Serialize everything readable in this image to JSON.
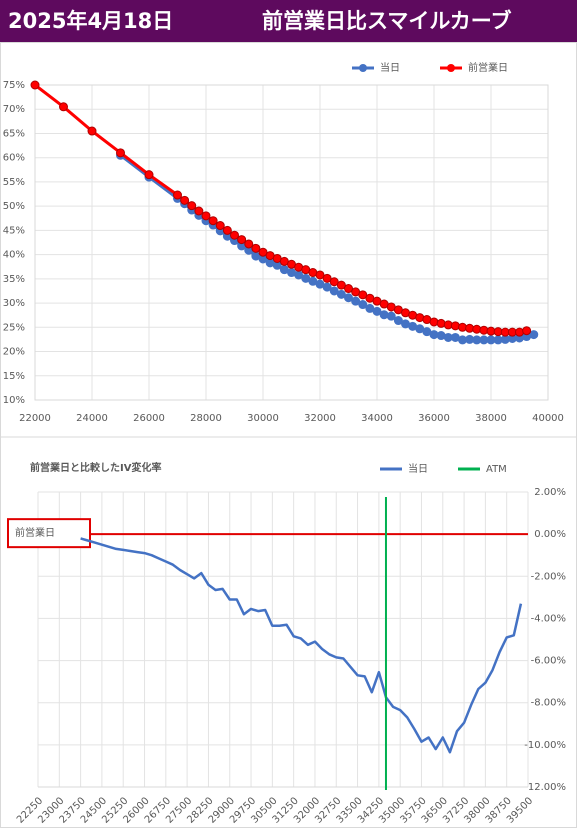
{
  "header": {
    "date": "2025年4月18日",
    "title": "前営業日比スマイルカーブ"
  },
  "chart_data": [
    {
      "type": "line",
      "markers": true,
      "grid": true,
      "legend": "top",
      "yaxis_position": "left",
      "xlim": [
        22000,
        40000
      ],
      "xticks": [
        22000,
        24000,
        26000,
        28000,
        30000,
        32000,
        34000,
        36000,
        38000,
        40000
      ],
      "ylim": [
        10,
        75
      ],
      "yticks": [
        {
          "value": 10,
          "label": "10%"
        },
        {
          "value": 15,
          "label": "15%"
        },
        {
          "value": 20,
          "label": "20%"
        },
        {
          "value": 25,
          "label": "25%"
        },
        {
          "value": 30,
          "label": "30%"
        },
        {
          "value": 35,
          "label": "35%"
        },
        {
          "value": 40,
          "label": "40%"
        },
        {
          "value": 45,
          "label": "45%"
        },
        {
          "value": 50,
          "label": "50%"
        },
        {
          "value": 55,
          "label": "55%"
        },
        {
          "value": 60,
          "label": "60%"
        },
        {
          "value": 65,
          "label": "65%"
        },
        {
          "value": 70,
          "label": "70%"
        },
        {
          "value": 75,
          "label": "75%"
        }
      ],
      "x": [
        22000,
        23000,
        24000,
        25000,
        26000,
        27000,
        27250,
        27500,
        27750,
        28000,
        28250,
        28500,
        28750,
        29000,
        29250,
        29500,
        29750,
        30000,
        30250,
        30500,
        30750,
        31000,
        31250,
        31500,
        31750,
        32000,
        32250,
        32500,
        32750,
        33000,
        33250,
        33500,
        33750,
        34000,
        34250,
        34500,
        34750,
        35000,
        35250,
        35500,
        35750,
        36000,
        36250,
        36500,
        36750,
        37000,
        37250,
        37500,
        37750,
        38000,
        38250,
        38500,
        38750,
        39000,
        39250,
        39500
      ],
      "series": [
        {
          "name": "当日",
          "color": "#4472c4",
          "values": [
            null,
            null,
            null,
            60.5,
            56,
            51.6,
            50.5,
            49.2,
            48.1,
            47.0,
            46.1,
            44.9,
            43.8,
            42.9,
            41.8,
            40.9,
            39.7,
            39.1,
            38.3,
            37.8,
            36.9,
            36.3,
            35.8,
            35.1,
            34.5,
            33.9,
            33.3,
            32.5,
            31.8,
            31.1,
            30.4,
            29.7,
            28.9,
            28.3,
            27.6,
            27.3,
            26.4,
            25.7,
            25.2,
            24.7,
            24.1,
            23.5,
            23.3,
            22.9,
            22.9,
            22.4,
            22.5,
            22.4,
            22.4,
            22.4,
            22.4,
            22.5,
            22.7,
            22.8,
            23.1,
            23.5
          ]
        },
        {
          "name": "前営業日",
          "color": "#ff0000",
          "values": [
            75,
            70.5,
            65.5,
            61,
            56.5,
            52.3,
            51.2,
            50.1,
            49.0,
            48.0,
            47.0,
            46.0,
            45.0,
            44.0,
            43.1,
            42.2,
            41.3,
            40.5,
            39.8,
            39.2,
            38.6,
            38.0,
            37.4,
            36.9,
            36.3,
            35.8,
            35.1,
            34.4,
            33.7,
            33.0,
            32.3,
            31.7,
            31.0,
            30.4,
            29.8,
            29.2,
            28.6,
            28.0,
            27.5,
            27.0,
            26.6,
            26.1,
            25.8,
            25.5,
            25.3,
            25.0,
            24.8,
            24.6,
            24.4,
            24.2,
            24.1,
            24.0,
            24.0,
            24.0,
            24.3,
            null
          ]
        }
      ]
    },
    {
      "type": "line",
      "markers": false,
      "grid": true,
      "legend": "top-right",
      "yaxis_position": "right",
      "title": "前営業日と比較したIV変化率",
      "xlim": [
        22250,
        39500
      ],
      "xticks": [
        22250,
        23000,
        23750,
        24500,
        25250,
        26000,
        26750,
        27500,
        28250,
        29000,
        29750,
        30500,
        31250,
        32000,
        32750,
        33500,
        34250,
        35000,
        35750,
        36500,
        37250,
        38000,
        38750,
        39500
      ],
      "ylim": [
        -12,
        2
      ],
      "yticks": [
        {
          "value": 2,
          "label": "2.00%"
        },
        {
          "value": 0,
          "label": "0.00%"
        },
        {
          "value": -2,
          "label": "-2.00%"
        },
        {
          "value": -4,
          "label": "-4.00%"
        },
        {
          "value": -6,
          "label": "-6.00%"
        },
        {
          "value": -8,
          "label": "-8.00%"
        },
        {
          "value": -10,
          "label": "-10.00%"
        },
        {
          "value": -12,
          "label": "-12.00%"
        }
      ],
      "x": [
        23750,
        24000,
        24250,
        24500,
        24750,
        25000,
        25250,
        25500,
        25750,
        26000,
        26250,
        26500,
        26750,
        27000,
        27250,
        27500,
        27750,
        28000,
        28250,
        28500,
        28750,
        29000,
        29250,
        29500,
        29750,
        30000,
        30250,
        30500,
        30750,
        31000,
        31250,
        31500,
        31750,
        32000,
        32250,
        32500,
        32750,
        33000,
        33250,
        33500,
        33750,
        34000,
        34250,
        34500,
        34750,
        35000,
        35250,
        35500,
        35750,
        36000,
        36250,
        36500,
        36750,
        37000,
        37250,
        37500,
        37750,
        38000,
        38250,
        38500,
        38750,
        39000,
        39250
      ],
      "series": [
        {
          "name": "当日",
          "color": "#4472c4",
          "values": [
            -0.2,
            -0.3,
            -0.4,
            -0.5,
            -0.6,
            -0.7,
            -0.75,
            -0.8,
            -0.85,
            -0.9,
            -1.0,
            -1.15,
            -1.3,
            -1.45,
            -1.7,
            -1.9,
            -2.1,
            -1.85,
            -2.4,
            -2.65,
            -2.6,
            -3.1,
            -3.1,
            -3.8,
            -3.55,
            -3.65,
            -3.6,
            -4.35,
            -4.35,
            -4.3,
            -4.85,
            -4.95,
            -5.25,
            -5.1,
            -5.45,
            -5.7,
            -5.85,
            -5.9,
            -6.3,
            -6.7,
            -6.75,
            -7.5,
            -6.55,
            -7.75,
            -8.2,
            -8.35,
            -8.7,
            -9.25,
            -9.85,
            -9.65,
            -10.2,
            -9.65,
            -10.35,
            -9.35,
            -8.95,
            -8.1,
            -7.35,
            -7.05,
            -6.45,
            -5.6,
            -4.9,
            -4.8,
            -3.3
          ]
        }
      ],
      "atm": {
        "name": "ATM",
        "color": "#00b050",
        "x": 34500
      },
      "reference": {
        "label": "前営業日",
        "value": 0,
        "color": "#e00000"
      }
    }
  ]
}
